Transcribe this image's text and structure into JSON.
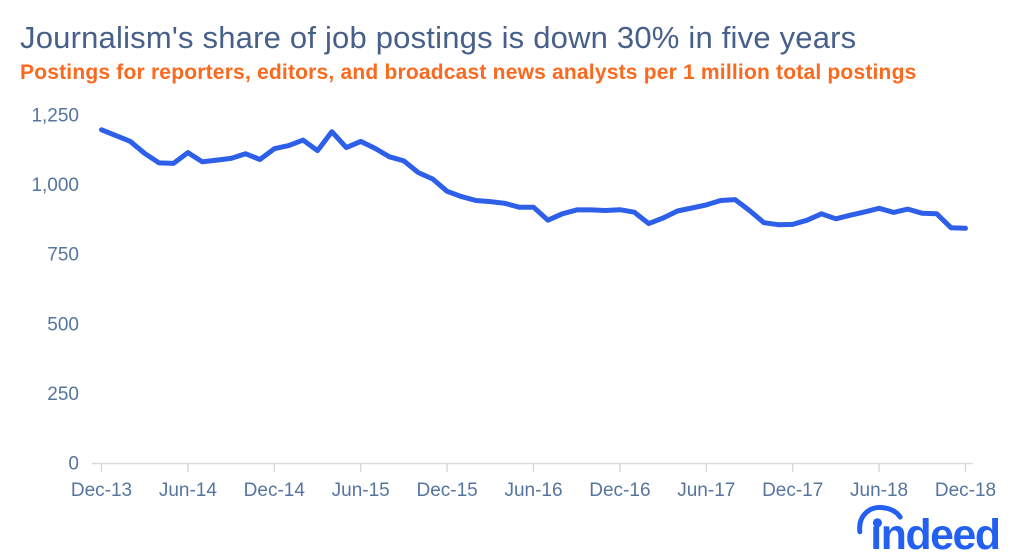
{
  "header": {
    "title": "Journalism's share of job postings is down 30% in five years",
    "subtitle": "Postings for reporters, editors, and broadcast news analysts per 1 million total postings",
    "title_color": "#47608a",
    "subtitle_color": "#fa691e"
  },
  "chart_data": {
    "type": "line",
    "title": "Journalism's share of job postings is down 30% in five years",
    "subtitle": "Postings for reporters, editors, and broadcast news analysts per 1 million total postings",
    "x": [
      "Dec-13",
      "Jan-14",
      "Feb-14",
      "Mar-14",
      "Apr-14",
      "May-14",
      "Jun-14",
      "Jul-14",
      "Aug-14",
      "Sep-14",
      "Oct-14",
      "Nov-14",
      "Dec-14",
      "Jan-15",
      "Feb-15",
      "Mar-15",
      "Apr-15",
      "May-15",
      "Jun-15",
      "Jul-15",
      "Aug-15",
      "Sep-15",
      "Oct-15",
      "Nov-15",
      "Dec-15",
      "Jan-16",
      "Feb-16",
      "Mar-16",
      "Apr-16",
      "May-16",
      "Jun-16",
      "Jul-16",
      "Aug-16",
      "Sep-16",
      "Oct-16",
      "Nov-16",
      "Dec-16",
      "Jan-17",
      "Feb-17",
      "Mar-17",
      "Apr-17",
      "May-17",
      "Jun-17",
      "Jul-17",
      "Aug-17",
      "Sep-17",
      "Oct-17",
      "Nov-17",
      "Dec-17",
      "Jan-18",
      "Feb-18",
      "Mar-18",
      "Apr-18",
      "May-18",
      "Jun-18",
      "Jul-18",
      "Aug-18",
      "Sep-18",
      "Oct-18",
      "Nov-18",
      "Dec-18"
    ],
    "values": [
      1197,
      1176,
      1155,
      1112,
      1078,
      1076,
      1115,
      1082,
      1088,
      1094,
      1111,
      1090,
      1129,
      1140,
      1160,
      1122,
      1190,
      1133,
      1155,
      1130,
      1100,
      1085,
      1043,
      1020,
      976,
      957,
      943,
      939,
      933,
      919,
      919,
      872,
      895,
      909,
      909,
      907,
      910,
      901,
      860,
      880,
      905,
      916,
      927,
      943,
      946,
      907,
      863,
      856,
      857,
      872,
      895,
      877,
      890,
      902,
      915,
      900,
      912,
      897,
      895,
      845,
      843
    ],
    "x_tick_labels": [
      "Dec-13",
      "Jun-14",
      "Dec-14",
      "Jun-15",
      "Dec-15",
      "Jun-16",
      "Dec-16",
      "Jun-17",
      "Dec-17",
      "Jun-18",
      "Dec-18"
    ],
    "x_tick_every_n_months": 6,
    "y_tick_labels": [
      "0",
      "250",
      "500",
      "750",
      "1,000",
      "1,250"
    ],
    "y_tick_values": [
      0,
      250,
      500,
      750,
      1000,
      1250
    ],
    "ylim": [
      0,
      1250
    ],
    "xlabel": "",
    "ylabel": "",
    "grid": "off",
    "legend": "none",
    "line_color": "#2d5fe9",
    "axis_label_color": "#55759e",
    "axis_line_color": "#d9d9d9"
  },
  "branding": {
    "logo_text": "ındeed",
    "logo_color": "#2360f2"
  }
}
